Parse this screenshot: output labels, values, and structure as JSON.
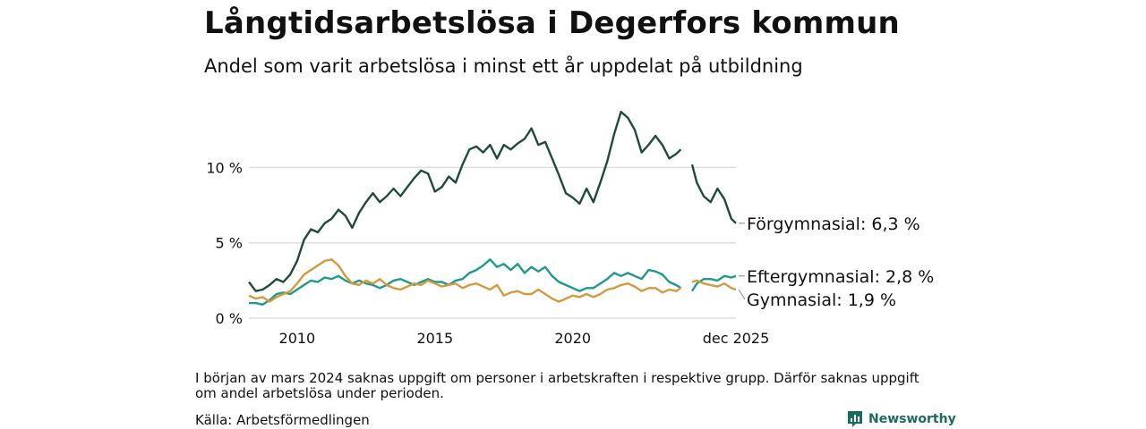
{
  "header": {
    "title": "Långtidsarbetslösa i Degerfors kommun",
    "subtitle": "Andel som varit arbetslösa i minst ett år uppdelat på utbildning"
  },
  "footer": {
    "note": "I början av mars 2024 saknas uppgift om personer i arbetskraften i respektive grupp. Därför saknas uppgift om andel arbetslösa under perioden.",
    "source": "Källa: Arbetsförmedlingen",
    "brand": "Newsworthy"
  },
  "chart_data": {
    "type": "line",
    "title": "Långtidsarbetslösa i Degerfors kommun",
    "subtitle": "Andel som varit arbetslösa i minst ett år uppdelat på utbildning",
    "xlabel": "",
    "ylabel": "",
    "xlim": [
      2008.25,
      2025.92
    ],
    "ylim": [
      0,
      14
    ],
    "x_ticks": [
      {
        "value": 2010,
        "label": "2010"
      },
      {
        "value": 2015,
        "label": "2015"
      },
      {
        "value": 2020,
        "label": "2020"
      },
      {
        "value": 2025.92,
        "label": "dec 2025"
      }
    ],
    "y_ticks": [
      {
        "value": 0,
        "label": "0 %"
      },
      {
        "value": 5,
        "label": "5 %"
      },
      {
        "value": 10,
        "label": "10 %"
      }
    ],
    "grid": true,
    "gap": [
      2024.17,
      2024.33
    ],
    "series": [
      {
        "name": "Förgymnasial",
        "end_label": "Förgymnasial: 6,3 %",
        "color": "#1f4a40",
        "points": [
          [
            2008.25,
            2.4
          ],
          [
            2008.5,
            1.8
          ],
          [
            2008.75,
            1.9
          ],
          [
            2009.0,
            2.2
          ],
          [
            2009.25,
            2.6
          ],
          [
            2009.5,
            2.4
          ],
          [
            2009.75,
            2.9
          ],
          [
            2010.0,
            3.8
          ],
          [
            2010.25,
            5.2
          ],
          [
            2010.5,
            5.9
          ],
          [
            2010.75,
            5.7
          ],
          [
            2011.0,
            6.3
          ],
          [
            2011.25,
            6.6
          ],
          [
            2011.5,
            7.2
          ],
          [
            2011.75,
            6.8
          ],
          [
            2012.0,
            6.0
          ],
          [
            2012.25,
            7.0
          ],
          [
            2012.5,
            7.7
          ],
          [
            2012.75,
            8.3
          ],
          [
            2013.0,
            7.7
          ],
          [
            2013.25,
            8.1
          ],
          [
            2013.5,
            8.6
          ],
          [
            2013.75,
            8.1
          ],
          [
            2014.0,
            8.7
          ],
          [
            2014.25,
            9.3
          ],
          [
            2014.5,
            9.8
          ],
          [
            2014.75,
            9.6
          ],
          [
            2015.0,
            8.4
          ],
          [
            2015.25,
            8.7
          ],
          [
            2015.5,
            9.4
          ],
          [
            2015.75,
            9.0
          ],
          [
            2016.0,
            10.2
          ],
          [
            2016.25,
            11.2
          ],
          [
            2016.5,
            11.4
          ],
          [
            2016.75,
            11.0
          ],
          [
            2017.0,
            11.5
          ],
          [
            2017.25,
            10.6
          ],
          [
            2017.5,
            11.5
          ],
          [
            2017.75,
            11.2
          ],
          [
            2018.0,
            11.6
          ],
          [
            2018.25,
            11.9
          ],
          [
            2018.5,
            12.6
          ],
          [
            2018.75,
            11.5
          ],
          [
            2019.0,
            11.7
          ],
          [
            2019.25,
            10.6
          ],
          [
            2019.5,
            9.5
          ],
          [
            2019.75,
            8.3
          ],
          [
            2020.0,
            8.0
          ],
          [
            2020.25,
            7.6
          ],
          [
            2020.5,
            8.6
          ],
          [
            2020.75,
            7.7
          ],
          [
            2021.0,
            9.0
          ],
          [
            2021.25,
            10.4
          ],
          [
            2021.5,
            12.2
          ],
          [
            2021.75,
            13.7
          ],
          [
            2022.0,
            13.3
          ],
          [
            2022.25,
            12.5
          ],
          [
            2022.5,
            11.0
          ],
          [
            2022.75,
            11.5
          ],
          [
            2023.0,
            12.1
          ],
          [
            2023.25,
            11.5
          ],
          [
            2023.5,
            10.6
          ],
          [
            2023.75,
            10.9
          ],
          [
            2023.92,
            11.2
          ],
          [
            2024.33,
            10.2
          ],
          [
            2024.5,
            9.0
          ],
          [
            2024.75,
            8.1
          ],
          [
            2025.0,
            7.7
          ],
          [
            2025.25,
            8.6
          ],
          [
            2025.5,
            7.9
          ],
          [
            2025.75,
            6.6
          ],
          [
            2025.92,
            6.3
          ]
        ]
      },
      {
        "name": "Eftergymnasial",
        "end_label": "Eftergymnasial: 2,8 %",
        "color": "#1f9a8a",
        "points": [
          [
            2008.25,
            1.0
          ],
          [
            2008.5,
            1.0
          ],
          [
            2008.75,
            0.9
          ],
          [
            2009.0,
            1.2
          ],
          [
            2009.25,
            1.6
          ],
          [
            2009.5,
            1.7
          ],
          [
            2009.75,
            1.6
          ],
          [
            2010.0,
            1.9
          ],
          [
            2010.25,
            2.2
          ],
          [
            2010.5,
            2.5
          ],
          [
            2010.75,
            2.4
          ],
          [
            2011.0,
            2.7
          ],
          [
            2011.25,
            2.6
          ],
          [
            2011.5,
            2.8
          ],
          [
            2011.75,
            2.5
          ],
          [
            2012.0,
            2.3
          ],
          [
            2012.25,
            2.5
          ],
          [
            2012.5,
            2.3
          ],
          [
            2012.75,
            2.2
          ],
          [
            2013.0,
            2.0
          ],
          [
            2013.25,
            2.2
          ],
          [
            2013.5,
            2.5
          ],
          [
            2013.75,
            2.6
          ],
          [
            2014.0,
            2.4
          ],
          [
            2014.25,
            2.2
          ],
          [
            2014.5,
            2.4
          ],
          [
            2014.75,
            2.6
          ],
          [
            2015.0,
            2.4
          ],
          [
            2015.25,
            2.4
          ],
          [
            2015.5,
            2.2
          ],
          [
            2015.75,
            2.5
          ],
          [
            2016.0,
            2.6
          ],
          [
            2016.25,
            3.0
          ],
          [
            2016.5,
            3.2
          ],
          [
            2016.75,
            3.5
          ],
          [
            2017.0,
            3.9
          ],
          [
            2017.25,
            3.4
          ],
          [
            2017.5,
            3.6
          ],
          [
            2017.75,
            3.2
          ],
          [
            2018.0,
            3.6
          ],
          [
            2018.25,
            3.0
          ],
          [
            2018.5,
            3.4
          ],
          [
            2018.75,
            3.1
          ],
          [
            2019.0,
            3.4
          ],
          [
            2019.25,
            2.8
          ],
          [
            2019.5,
            2.4
          ],
          [
            2019.75,
            2.2
          ],
          [
            2020.0,
            2.0
          ],
          [
            2020.25,
            1.8
          ],
          [
            2020.5,
            2.0
          ],
          [
            2020.75,
            2.0
          ],
          [
            2021.0,
            2.3
          ],
          [
            2021.25,
            2.6
          ],
          [
            2021.5,
            3.0
          ],
          [
            2021.75,
            2.8
          ],
          [
            2022.0,
            3.0
          ],
          [
            2022.25,
            2.8
          ],
          [
            2022.5,
            2.6
          ],
          [
            2022.75,
            3.2
          ],
          [
            2023.0,
            3.1
          ],
          [
            2023.25,
            2.9
          ],
          [
            2023.5,
            2.4
          ],
          [
            2023.75,
            2.2
          ],
          [
            2023.92,
            2.0
          ],
          [
            2024.33,
            1.8
          ],
          [
            2024.5,
            2.3
          ],
          [
            2024.75,
            2.6
          ],
          [
            2025.0,
            2.6
          ],
          [
            2025.25,
            2.5
          ],
          [
            2025.5,
            2.8
          ],
          [
            2025.75,
            2.7
          ],
          [
            2025.92,
            2.8
          ]
        ]
      },
      {
        "name": "Gymnasial",
        "end_label": "Gymnasial: 1,9 %",
        "color": "#d39a3f",
        "points": [
          [
            2008.25,
            1.5
          ],
          [
            2008.5,
            1.3
          ],
          [
            2008.75,
            1.4
          ],
          [
            2009.0,
            1.1
          ],
          [
            2009.25,
            1.4
          ],
          [
            2009.5,
            1.6
          ],
          [
            2009.75,
            1.8
          ],
          [
            2010.0,
            2.3
          ],
          [
            2010.25,
            2.9
          ],
          [
            2010.5,
            3.2
          ],
          [
            2010.75,
            3.5
          ],
          [
            2011.0,
            3.8
          ],
          [
            2011.25,
            3.9
          ],
          [
            2011.5,
            3.5
          ],
          [
            2011.75,
            2.8
          ],
          [
            2012.0,
            2.3
          ],
          [
            2012.25,
            2.2
          ],
          [
            2012.5,
            2.5
          ],
          [
            2012.75,
            2.3
          ],
          [
            2013.0,
            2.6
          ],
          [
            2013.25,
            2.2
          ],
          [
            2013.5,
            2.0
          ],
          [
            2013.75,
            1.9
          ],
          [
            2014.0,
            2.1
          ],
          [
            2014.25,
            2.3
          ],
          [
            2014.5,
            2.2
          ],
          [
            2014.75,
            2.5
          ],
          [
            2015.0,
            2.3
          ],
          [
            2015.25,
            2.1
          ],
          [
            2015.5,
            2.2
          ],
          [
            2015.75,
            2.3
          ],
          [
            2016.0,
            2.0
          ],
          [
            2016.25,
            2.2
          ],
          [
            2016.5,
            2.3
          ],
          [
            2016.75,
            2.1
          ],
          [
            2017.0,
            1.9
          ],
          [
            2017.25,
            2.2
          ],
          [
            2017.5,
            1.5
          ],
          [
            2017.75,
            1.7
          ],
          [
            2018.0,
            1.8
          ],
          [
            2018.25,
            1.6
          ],
          [
            2018.5,
            1.6
          ],
          [
            2018.75,
            1.9
          ],
          [
            2019.0,
            1.6
          ],
          [
            2019.25,
            1.3
          ],
          [
            2019.5,
            1.1
          ],
          [
            2019.75,
            1.3
          ],
          [
            2020.0,
            1.5
          ],
          [
            2020.25,
            1.4
          ],
          [
            2020.5,
            1.6
          ],
          [
            2020.75,
            1.4
          ],
          [
            2021.0,
            1.6
          ],
          [
            2021.25,
            1.9
          ],
          [
            2021.5,
            2.0
          ],
          [
            2021.75,
            2.2
          ],
          [
            2022.0,
            2.3
          ],
          [
            2022.25,
            2.1
          ],
          [
            2022.5,
            1.8
          ],
          [
            2022.75,
            2.0
          ],
          [
            2023.0,
            2.0
          ],
          [
            2023.25,
            1.7
          ],
          [
            2023.5,
            1.9
          ],
          [
            2023.75,
            1.8
          ],
          [
            2023.92,
            2.0
          ],
          [
            2024.33,
            2.4
          ],
          [
            2024.5,
            2.5
          ],
          [
            2024.75,
            2.3
          ],
          [
            2025.0,
            2.2
          ],
          [
            2025.25,
            2.1
          ],
          [
            2025.5,
            2.3
          ],
          [
            2025.75,
            2.0
          ],
          [
            2025.92,
            1.9
          ]
        ]
      }
    ]
  }
}
